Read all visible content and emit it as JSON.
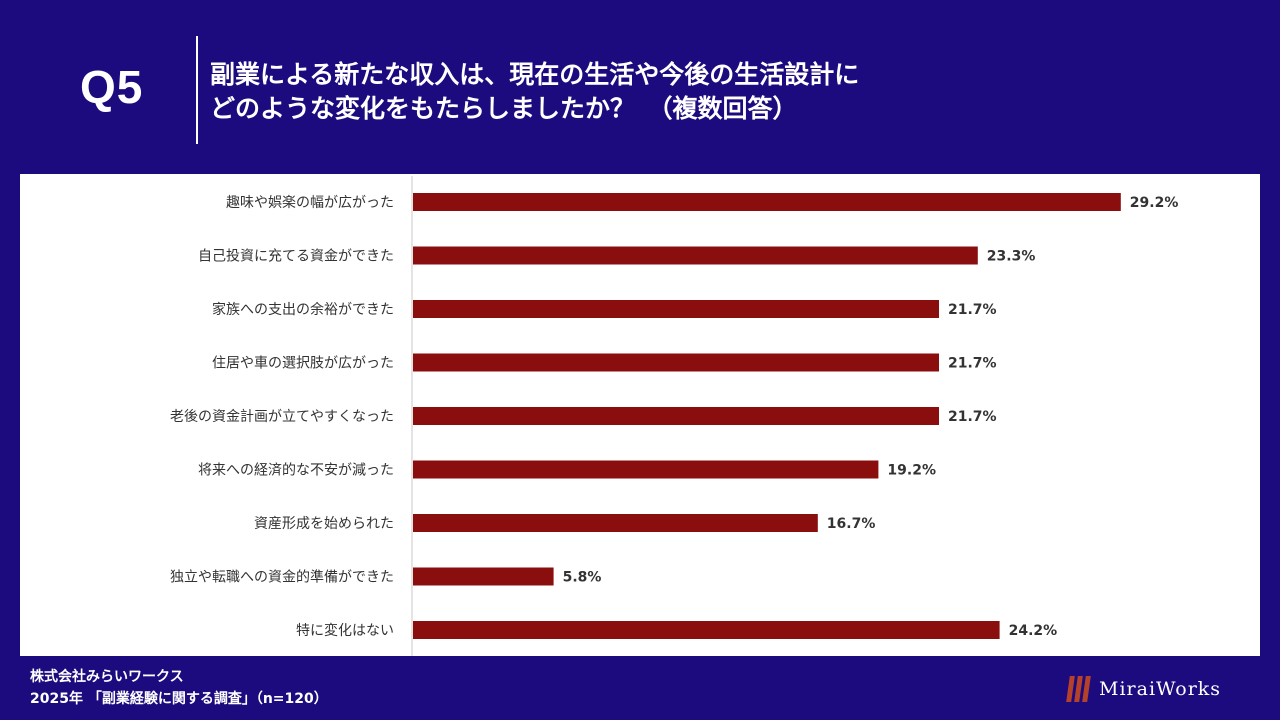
{
  "question": {
    "number": "Q5",
    "title_line1": "副業による新たな収入は、現在の生活や今後の生活設計に",
    "title_line2": "どのような変化をもたらしましたか？　（複数回答）"
  },
  "chart_data": {
    "type": "bar",
    "orientation": "horizontal",
    "categories": [
      "趣味や娯楽の幅が広がった",
      "自己投資に充てる資金ができた",
      "家族への支出の余裕ができた",
      "住居や車の選択肢が広がった",
      "老後の資金計画が立てやすくなった",
      "将来への経済的な不安が減った",
      "資産形成を始められた",
      "独立や転職への資金的準備ができた",
      "特に変化はない"
    ],
    "values": [
      29.2,
      23.3,
      21.7,
      21.7,
      21.7,
      19.2,
      16.7,
      5.8,
      24.2
    ],
    "value_labels": [
      "29.2%",
      "23.3%",
      "21.7%",
      "21.7%",
      "21.7%",
      "19.2%",
      "16.7%",
      "5.8%",
      "24.2%"
    ],
    "bar_color": "#8b0e0e",
    "grid": false,
    "legend": "none",
    "title": "",
    "xlabel": "",
    "ylabel": ""
  },
  "footer": {
    "company": "株式会社みらいワークス",
    "survey": "2025年 「副業経験に関する調査」（n=120）"
  },
  "logo": {
    "text": "MiraiWorks",
    "accent_color": "#b5412a"
  },
  "colors": {
    "background": "#1c0b7e",
    "panel": "#ffffff"
  }
}
